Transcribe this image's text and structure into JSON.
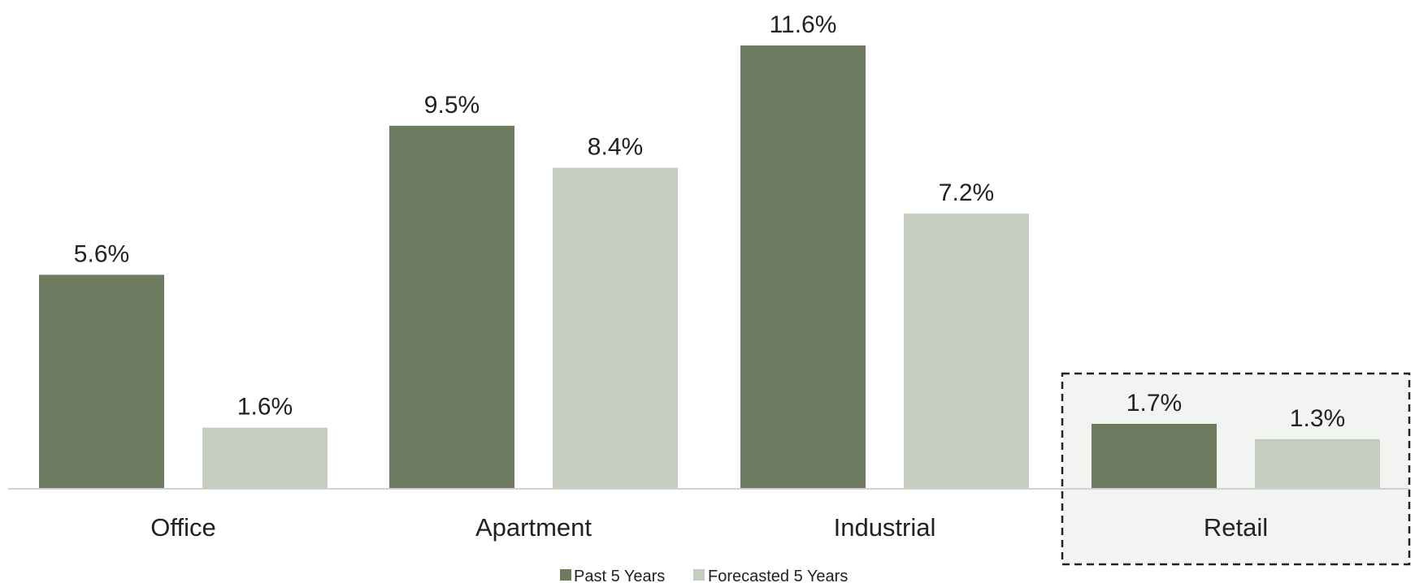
{
  "chart_data": {
    "type": "bar",
    "categories": [
      "Office",
      "Apartment",
      "Industrial",
      "Retail"
    ],
    "series": [
      {
        "name": "Past 5 Years",
        "values": [
          5.6,
          9.5,
          11.6,
          1.7
        ],
        "labels": [
          "5.6%",
          "9.5%",
          "11.6%",
          "1.7%"
        ],
        "color": "#6e7b60"
      },
      {
        "name": "Forecasted 5 Years",
        "values": [
          1.6,
          8.4,
          7.2,
          1.3
        ],
        "labels": [
          "1.6%",
          "8.4%",
          "7.2%",
          "1.3%"
        ],
        "color": "#c4cdbe"
      }
    ],
    "highlighted_category": "Retail",
    "highlight_fill": "#f2f4f1",
    "axis_color": "#d0d0d0",
    "unit": "%",
    "ylim": [
      0,
      11.6
    ],
    "grid": false,
    "legend_position": "bottom-center",
    "title": "",
    "xlabel": "",
    "ylabel": ""
  }
}
